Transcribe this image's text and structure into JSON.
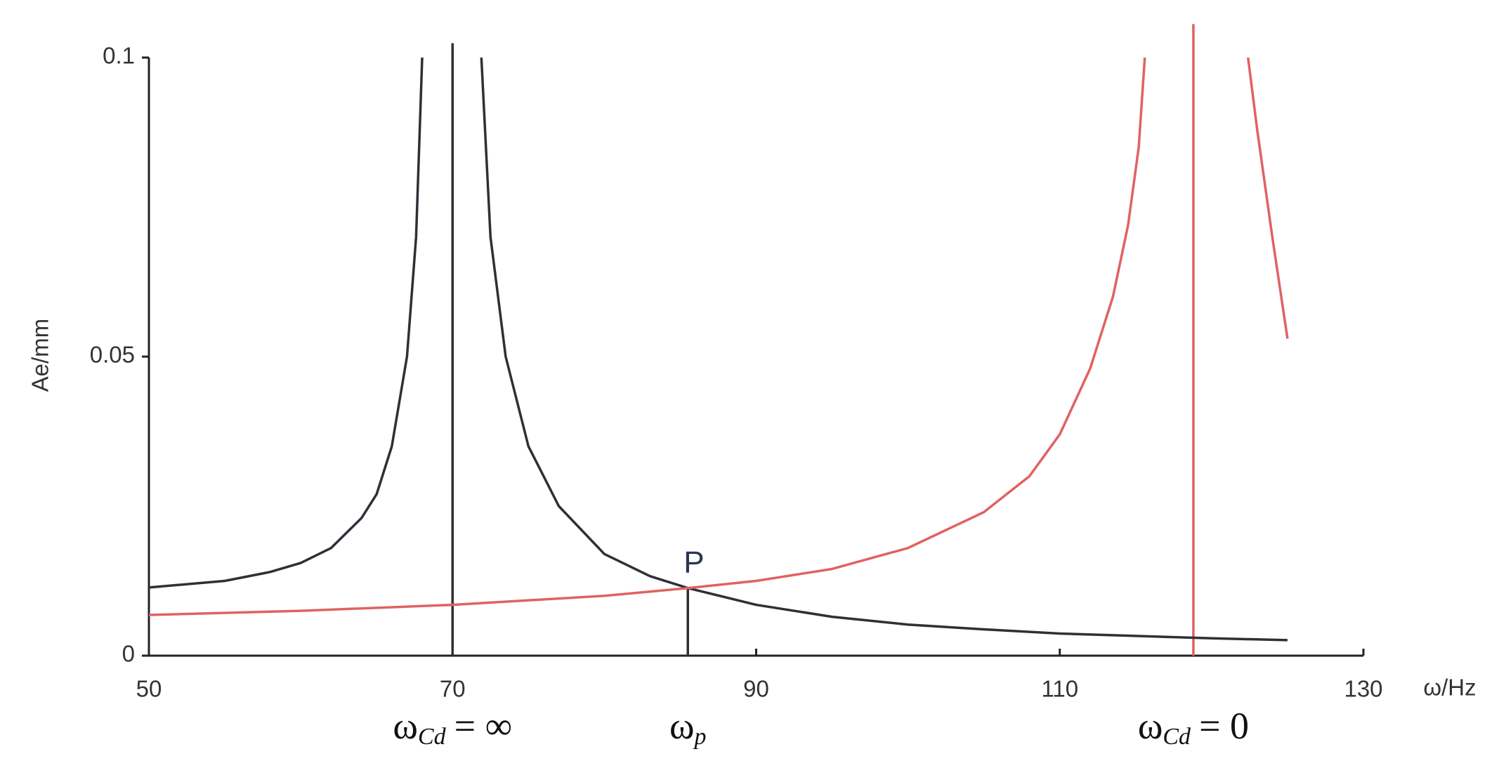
{
  "chart_data": {
    "type": "line",
    "x_label": "ω/Hz",
    "y_label": "Ae/mm",
    "xlim": [
      50,
      130
    ],
    "xticks": [
      50,
      70,
      90,
      110,
      130
    ],
    "ylim": [
      0,
      0.1
    ],
    "yticks": [
      0,
      0.05,
      0.1
    ],
    "series": [
      {
        "color": "#2f2f38",
        "x": [
          50,
          55,
          58,
          60,
          62,
          64,
          65,
          66,
          67,
          67.6,
          68,
          70,
          71.9,
          72.5,
          73.5,
          75,
          77,
          80,
          83,
          85.5,
          90,
          95,
          100,
          105,
          110,
          115,
          120,
          125
        ],
        "values": [
          0.0114,
          0.0125,
          0.014,
          0.0155,
          0.018,
          0.023,
          0.027,
          0.035,
          0.05,
          0.07,
          0.1,
          null,
          0.1,
          0.07,
          0.05,
          0.035,
          0.025,
          0.017,
          0.0133,
          0.0113,
          0.0085,
          0.0065,
          0.0052,
          0.0044,
          0.0037,
          0.0033,
          0.0029,
          0.0026
        ]
      },
      {
        "color": "#e06262",
        "x": [
          50,
          60,
          70,
          80,
          85.5,
          90,
          95,
          100,
          105,
          108,
          110,
          112,
          113.5,
          114.5,
          115.2,
          115.6,
          119,
          122.4,
          123,
          124,
          125
        ],
        "values": [
          0.0068,
          0.0075,
          0.0085,
          0.01,
          0.0113,
          0.0125,
          0.0145,
          0.018,
          0.024,
          0.03,
          0.037,
          0.048,
          0.06,
          0.072,
          0.085,
          0.1,
          null,
          0.1,
          0.088,
          0.07,
          0.053
        ]
      }
    ],
    "vertical_lines": [
      {
        "x": 70,
        "y": [
          0,
          0.1024
        ],
        "color": "#2f2f38",
        "label": {
          "text": "ω",
          "subscript": "Cd",
          "suffix": "= ∞"
        }
      },
      {
        "x": 85.5,
        "y": [
          0,
          0.0113
        ],
        "color": "#2f2f38",
        "label": {
          "text": "ω",
          "subscript": "p"
        },
        "top_label": "P"
      },
      {
        "x": 118.8,
        "y": [
          0,
          0.1056
        ],
        "color": "#e06262",
        "label": {
          "text": "ω",
          "subscript": "Cd",
          "suffix": "= 0"
        }
      }
    ]
  }
}
